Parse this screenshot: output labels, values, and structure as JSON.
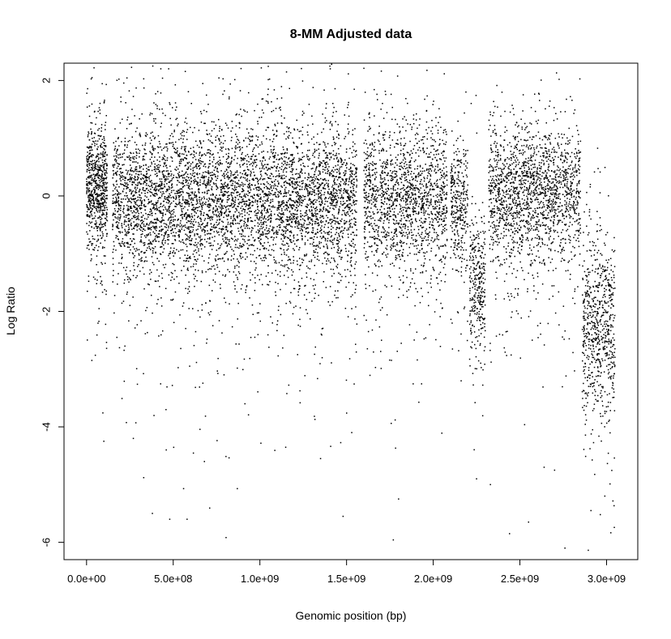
{
  "chart_data": {
    "type": "scatter",
    "title": "8-MM Adjusted data",
    "xlabel": "Genomic position (bp)",
    "ylabel": "Log Ratio",
    "xlim": [
      -130000000,
      3180000000
    ],
    "ylim": [
      -6.3,
      2.3
    ],
    "x_ticks": [
      0,
      500000000,
      1000000000,
      1500000000,
      2000000000,
      2500000000,
      3000000000
    ],
    "x_tick_labels": [
      "0.0e+00",
      "5.0e+08",
      "1.0e+09",
      "1.5e+09",
      "2.0e+09",
      "2.5e+09",
      "3.0e+09"
    ],
    "y_ticks": [
      2,
      0,
      -2,
      -4,
      -6
    ],
    "y_tick_labels": [
      "2",
      "0",
      "-2",
      "-4",
      "-6"
    ],
    "grid": false,
    "marker_color": "#000000",
    "marker": "dot",
    "segments": [
      {
        "x_start": 0,
        "x_end": 120000000,
        "center": 0.15,
        "spread": 0.55,
        "n": 720
      },
      {
        "x_start": 150000000,
        "x_end": 1560000000,
        "center": -0.05,
        "spread": 0.6,
        "n": 5200
      },
      {
        "x_start": 1600000000,
        "x_end": 2080000000,
        "center": -0.05,
        "spread": 0.6,
        "n": 1600
      },
      {
        "x_start": 2100000000,
        "x_end": 2200000000,
        "center": -0.1,
        "spread": 0.5,
        "n": 320
      },
      {
        "x_start": 2210000000,
        "x_end": 2300000000,
        "center": -1.5,
        "spread": 0.6,
        "n": 320
      },
      {
        "x_start": 2320000000,
        "x_end": 2720000000,
        "center": 0.05,
        "spread": 0.55,
        "n": 1400
      },
      {
        "x_start": 2720000000,
        "x_end": 2850000000,
        "center": 0.1,
        "spread": 0.55,
        "n": 380
      },
      {
        "x_start": 2860000000,
        "x_end": 3050000000,
        "center": -2.3,
        "spread": 0.7,
        "n": 700
      }
    ],
    "outliers": [
      [
        330000000,
        -4.88
      ],
      [
        380000000,
        -5.5
      ],
      [
        460000000,
        -4.4
      ],
      [
        480000000,
        -5.6
      ],
      [
        560000000,
        -5.07
      ],
      [
        580000000,
        -5.6
      ],
      [
        870000000,
        -5.07
      ],
      [
        1480000000,
        -5.55
      ],
      [
        1800000000,
        -5.25
      ],
      [
        2440000000,
        -5.85
      ],
      [
        2550000000,
        -5.65
      ],
      [
        2760000000,
        -6.1
      ],
      [
        2910000000,
        -5.45
      ],
      [
        2990000000,
        -5.2
      ],
      [
        100000000,
        -4.25
      ],
      [
        270000000,
        -4.2
      ],
      [
        1350000000,
        -4.55
      ],
      [
        2640000000,
        -4.7
      ],
      [
        2700000000,
        -4.75
      ],
      [
        2330000000,
        -5.0
      ],
      [
        2250000000,
        -4.9
      ],
      [
        680000000,
        -4.6
      ],
      [
        1530000000,
        -4.1
      ]
    ]
  }
}
